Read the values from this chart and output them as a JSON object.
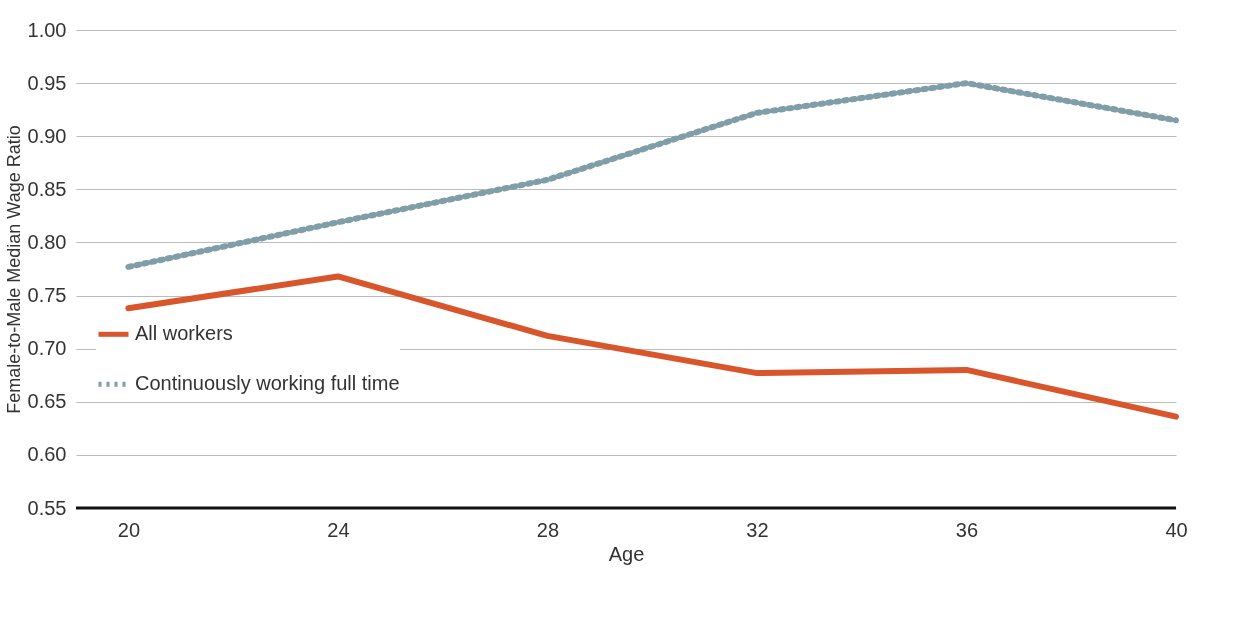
{
  "chart_data": {
    "type": "line",
    "xlabel": "Age",
    "ylabel": "Female-to-Male Median Wage Ratio",
    "x": [
      20,
      24,
      28,
      32,
      36,
      40
    ],
    "series": [
      {
        "name": "All workers",
        "color": "#d9552b",
        "line_style": "solid",
        "values": [
          0.738,
          0.768,
          0.712,
          0.677,
          0.68,
          0.636
        ]
      },
      {
        "name": "Continuously working full time",
        "color": "#7f9ea8",
        "line_style": "dotted",
        "values": [
          0.777,
          0.819,
          0.859,
          0.922,
          0.95,
          0.915
        ]
      }
    ],
    "xlim": [
      19,
      40
    ],
    "xticks": [
      20,
      24,
      28,
      32,
      36,
      40
    ],
    "ylim": [
      0.55,
      1.0
    ],
    "yticks": [
      0.55,
      {
        "value": 0.6,
        "label": "0.60"
      },
      0.65,
      {
        "value": 0.7,
        "label": "0.70"
      },
      0.75,
      {
        "value": 0.8,
        "label": "0.80"
      },
      0.85,
      {
        "value": 0.9,
        "label": "0.90"
      },
      0.95,
      {
        "value": 1.0,
        "label": "1.00"
      }
    ],
    "grid": "y",
    "legend": "left",
    "marker": "none"
  }
}
